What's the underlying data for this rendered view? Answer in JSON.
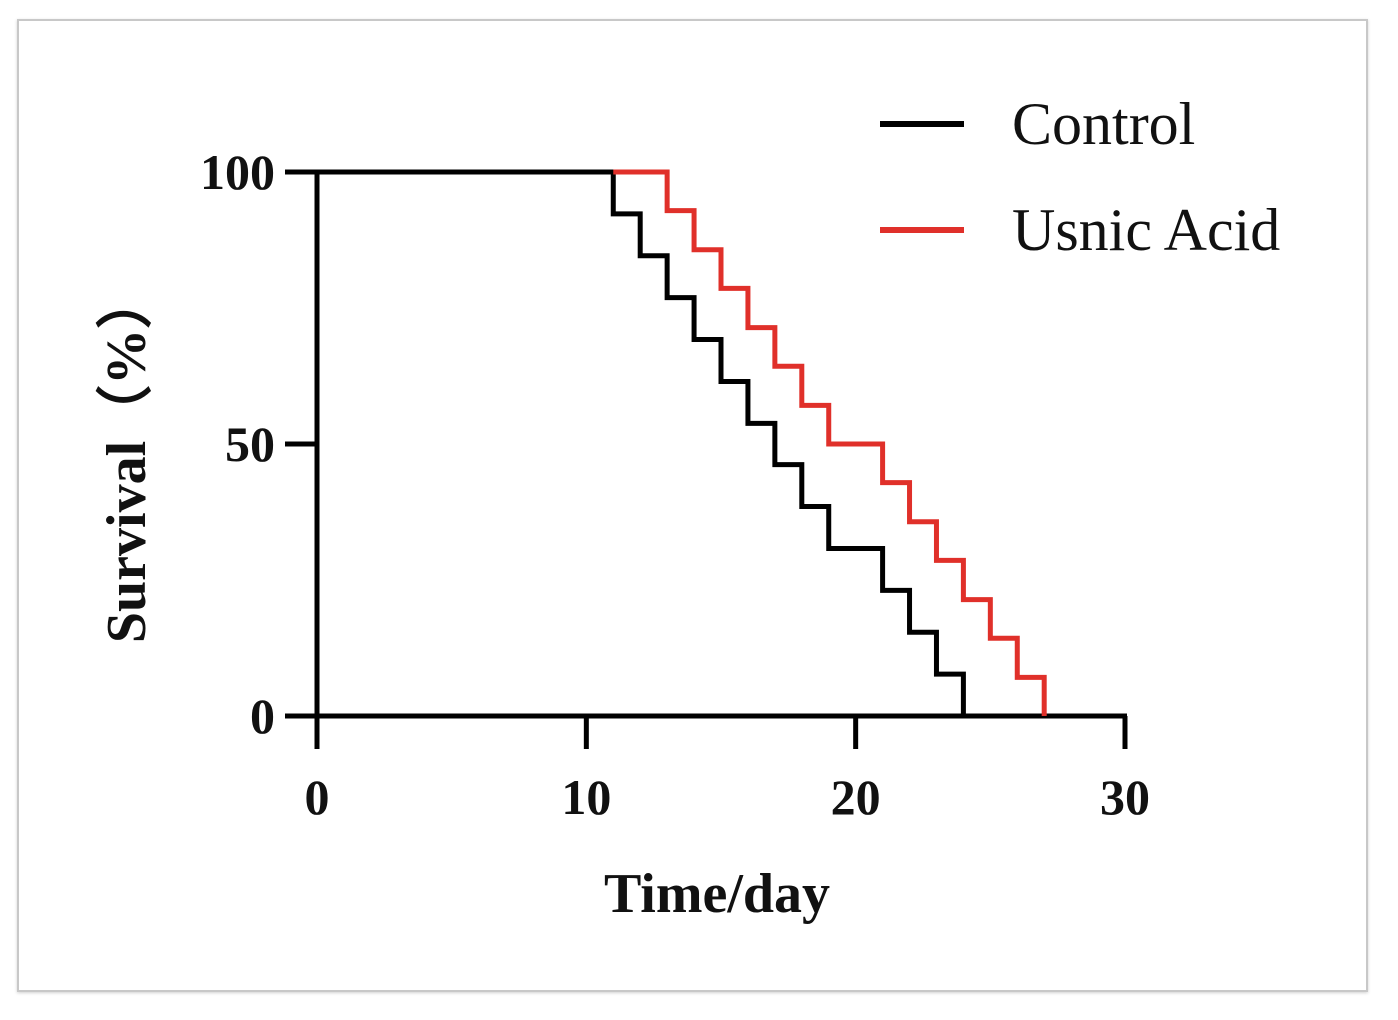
{
  "chart_data": {
    "type": "line",
    "step": true,
    "xlabel": "Time/day",
    "ylabel": "Survival（%）",
    "xlim": [
      0,
      30
    ],
    "ylim": [
      0,
      100
    ],
    "xticks": [
      "0",
      "10",
      "20",
      "30"
    ],
    "yticks": [
      "0",
      "50",
      "100"
    ],
    "grid": false,
    "legend_position": "top-right",
    "series": [
      {
        "name": "Control",
        "color": "#000000",
        "x": [
          0,
          11,
          12,
          13,
          14,
          15,
          16,
          17,
          18,
          19,
          21,
          22,
          23,
          24
        ],
        "y": [
          100,
          92.3,
          84.6,
          76.9,
          69.2,
          61.5,
          53.8,
          46.2,
          38.5,
          30.8,
          23.1,
          15.4,
          7.7,
          0
        ]
      },
      {
        "name": "Usnic Acid",
        "color": "#e0302a",
        "x": [
          11,
          13,
          14,
          15,
          16,
          17,
          18,
          19,
          21,
          22,
          23,
          24,
          25,
          26,
          27
        ],
        "y": [
          100,
          92.9,
          85.7,
          78.6,
          71.4,
          64.3,
          57.1,
          50,
          42.9,
          35.7,
          28.6,
          21.4,
          14.3,
          7.1,
          0
        ]
      }
    ]
  }
}
